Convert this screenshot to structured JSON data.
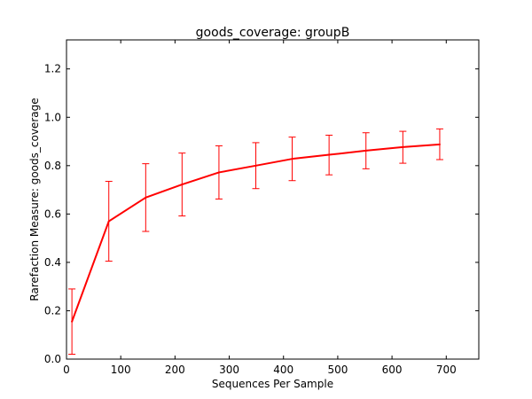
{
  "chart_data": {
    "type": "line",
    "title": "goods_coverage: groupB",
    "xlabel": "Sequences Per Sample",
    "ylabel": "Rarefaction Measure: goods_coverage",
    "xlim": [
      0,
      760
    ],
    "ylim": [
      0.0,
      1.32
    ],
    "xticks": [
      0,
      100,
      200,
      300,
      400,
      500,
      600,
      700
    ],
    "yticks": [
      0.0,
      0.2,
      0.4,
      0.6,
      0.8,
      1.0,
      1.2
    ],
    "xtick_labels": [
      "0",
      "100",
      "200",
      "300",
      "400",
      "500",
      "600",
      "700"
    ],
    "ytick_labels": [
      "0.0",
      "0.2",
      "0.4",
      "0.6",
      "0.8",
      "1.0",
      "1.2"
    ],
    "grid": false,
    "legend": "none",
    "series": [
      {
        "color": "#ff0000",
        "x": [
          10,
          78,
          146,
          213,
          281,
          349,
          416,
          484,
          552,
          620,
          688
        ],
        "y": [
          0.155,
          0.57,
          0.668,
          0.722,
          0.772,
          0.8,
          0.828,
          0.845,
          0.862,
          0.877,
          0.888
        ],
        "err_low": [
          0.02,
          0.405,
          0.528,
          0.592,
          0.662,
          0.705,
          0.738,
          0.762,
          0.787,
          0.81,
          0.825
        ],
        "err_high": [
          0.29,
          0.735,
          0.808,
          0.852,
          0.882,
          0.895,
          0.918,
          0.926,
          0.936,
          0.942,
          0.952
        ]
      }
    ]
  }
}
